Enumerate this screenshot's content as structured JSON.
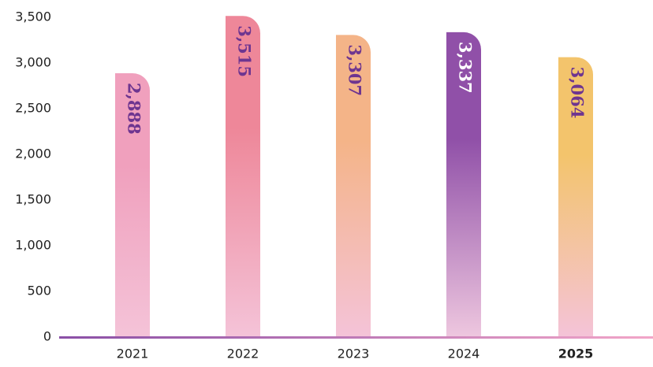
{
  "chart_data": {
    "type": "bar",
    "categories": [
      "2021",
      "2022",
      "2023",
      "2024",
      "2025"
    ],
    "values": [
      2888,
      3515,
      3307,
      3337,
      3064
    ],
    "value_labels": [
      "2,888",
      "3,515",
      "3,307",
      "3,337",
      "3,064"
    ],
    "colors": [
      "#f0a0bd",
      "#ee8799",
      "#f4b488",
      "#9050a8",
      "#f3c46c"
    ],
    "ylim": [
      0,
      3500
    ],
    "yticks": [
      0,
      500,
      {
        "value": 1000,
        "label": "1,000"
      },
      {
        "value": 1500,
        "label": "1,500"
      },
      {
        "value": 2000,
        "label": "2,000"
      },
      {
        "value": 2500,
        "label": "2,500"
      },
      {
        "value": 3000,
        "label": "3,000"
      },
      {
        "value": 3500,
        "label": "3,500"
      }
    ],
    "grid": false
  }
}
